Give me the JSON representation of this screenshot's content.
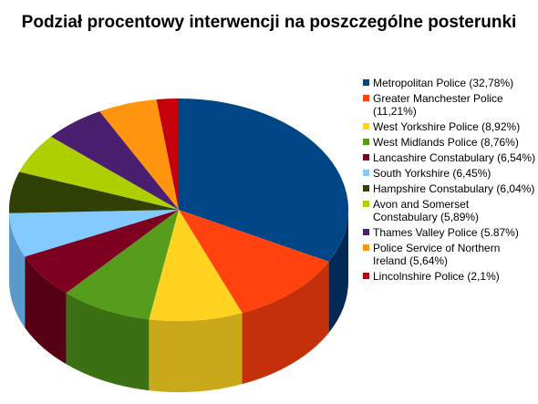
{
  "chart_data": {
    "type": "pie",
    "title": "Podział procentowy interwencji na poszczególne posterunki",
    "legend_position": "right",
    "slices": [
      {
        "label": "Metropolitan Police (32,78%)",
        "value": 32.78,
        "color": "#004586",
        "side": "#002a55"
      },
      {
        "label": "Greater Manchester Police (11,21%)",
        "value": 11.21,
        "color": "#ff420e",
        "side": "#c4300a"
      },
      {
        "label": "West Yorkshire Police (8,92%)",
        "value": 8.92,
        "color": "#ffd320",
        "side": "#c9a81a"
      },
      {
        "label": "West Midlands Police (8,76%)",
        "value": 8.76,
        "color": "#579d1c",
        "side": "#3d7013"
      },
      {
        "label": "Lancashire Constabulary (6,54%)",
        "value": 6.54,
        "color": "#7e0021",
        "side": "#560016"
      },
      {
        "label": "South Yorkshire (6,45%)",
        "value": 6.45,
        "color": "#83caff",
        "side": "#5c9acb"
      },
      {
        "label": "Hampshire Constabulary (6,04%)",
        "value": 6.04,
        "color": "#314004",
        "side": "#1f2902"
      },
      {
        "label": "Avon and Somerset Constabulary (5,89%)",
        "value": 5.89,
        "color": "#aecf00",
        "side": "#879f00"
      },
      {
        "label": "Thames Valley Police (5.87%)",
        "value": 5.87,
        "color": "#4b1f6f",
        "side": "#33144c"
      },
      {
        "label": "Police Service of Northern Ireland (5,64%)",
        "value": 5.64,
        "color": "#ff950e",
        "side": "#c7730a"
      },
      {
        "label": "Lincolnshire Police (2,1%)",
        "value": 2.1,
        "color": "#c5000b",
        "side": "#8e0008"
      }
    ]
  }
}
